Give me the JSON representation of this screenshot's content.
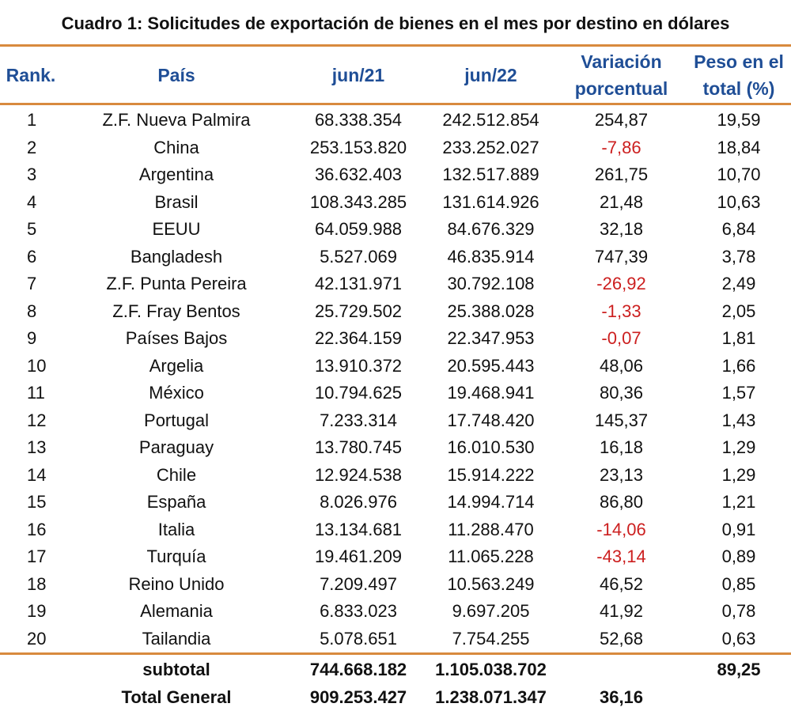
{
  "title": "Cuadro 1: Solicitudes de exportación de bienes en el mes por destino en dólares",
  "headers": {
    "rank": "Rank.",
    "pais": "País",
    "col1": "jun/21",
    "col2": "jun/22",
    "var_line1": "Variación",
    "var_line2": "porcentual",
    "peso_line1": "Peso en el",
    "peso_line2": "total (%)"
  },
  "rows": [
    {
      "rank": "1",
      "pais": "Z.F. Nueva Palmira",
      "jun21": "68.338.354",
      "jun22": "242.512.854",
      "var": "254,87",
      "peso": "19,59"
    },
    {
      "rank": "2",
      "pais": "China",
      "jun21": "253.153.820",
      "jun22": "233.252.027",
      "var": "-7,86",
      "peso": "18,84"
    },
    {
      "rank": "3",
      "pais": "Argentina",
      "jun21": "36.632.403",
      "jun22": "132.517.889",
      "var": "261,75",
      "peso": "10,70"
    },
    {
      "rank": "4",
      "pais": "Brasil",
      "jun21": "108.343.285",
      "jun22": "131.614.926",
      "var": "21,48",
      "peso": "10,63"
    },
    {
      "rank": "5",
      "pais": "EEUU",
      "jun21": "64.059.988",
      "jun22": "84.676.329",
      "var": "32,18",
      "peso": "6,84"
    },
    {
      "rank": "6",
      "pais": "Bangladesh",
      "jun21": "5.527.069",
      "jun22": "46.835.914",
      "var": "747,39",
      "peso": "3,78"
    },
    {
      "rank": "7",
      "pais": "Z.F. Punta Pereira",
      "jun21": "42.131.971",
      "jun22": "30.792.108",
      "var": "-26,92",
      "peso": "2,49"
    },
    {
      "rank": "8",
      "pais": "Z.F. Fray Bentos",
      "jun21": "25.729.502",
      "jun22": "25.388.028",
      "var": "-1,33",
      "peso": "2,05"
    },
    {
      "rank": "9",
      "pais": "Países Bajos",
      "jun21": "22.364.159",
      "jun22": "22.347.953",
      "var": "-0,07",
      "peso": "1,81"
    },
    {
      "rank": "10",
      "pais": "Argelia",
      "jun21": "13.910.372",
      "jun22": "20.595.443",
      "var": "48,06",
      "peso": "1,66"
    },
    {
      "rank": "11",
      "pais": "México",
      "jun21": "10.794.625",
      "jun22": "19.468.941",
      "var": "80,36",
      "peso": "1,57"
    },
    {
      "rank": "12",
      "pais": "Portugal",
      "jun21": "7.233.314",
      "jun22": "17.748.420",
      "var": "145,37",
      "peso": "1,43"
    },
    {
      "rank": "13",
      "pais": "Paraguay",
      "jun21": "13.780.745",
      "jun22": "16.010.530",
      "var": "16,18",
      "peso": "1,29"
    },
    {
      "rank": "14",
      "pais": "Chile",
      "jun21": "12.924.538",
      "jun22": "15.914.222",
      "var": "23,13",
      "peso": "1,29"
    },
    {
      "rank": "15",
      "pais": "España",
      "jun21": "8.026.976",
      "jun22": "14.994.714",
      "var": "86,80",
      "peso": "1,21"
    },
    {
      "rank": "16",
      "pais": "Italia",
      "jun21": "13.134.681",
      "jun22": "11.288.470",
      "var": "-14,06",
      "peso": "0,91"
    },
    {
      "rank": "17",
      "pais": "Turquía",
      "jun21": "19.461.209",
      "jun22": "11.065.228",
      "var": "-43,14",
      "peso": "0,89"
    },
    {
      "rank": "18",
      "pais": "Reino Unido",
      "jun21": "7.209.497",
      "jun22": "10.563.249",
      "var": "46,52",
      "peso": "0,85"
    },
    {
      "rank": "19",
      "pais": "Alemania",
      "jun21": "6.833.023",
      "jun22": "9.697.205",
      "var": "41,92",
      "peso": "0,78"
    },
    {
      "rank": "20",
      "pais": "Tailandia",
      "jun21": "5.078.651",
      "jun22": "7.754.255",
      "var": "52,68",
      "peso": "0,63"
    }
  ],
  "subtotal": {
    "label": "subtotal",
    "jun21": "744.668.182",
    "jun22": "1.105.038.702",
    "var": "",
    "peso": "89,25"
  },
  "total": {
    "label": "Total General",
    "jun21": "909.253.427",
    "jun22": "1.238.071.347",
    "var": "36,16",
    "peso": ""
  },
  "colors": {
    "header_text": "#1f4e96",
    "rule": "#d88a3e",
    "negative": "#cc1f1f"
  }
}
